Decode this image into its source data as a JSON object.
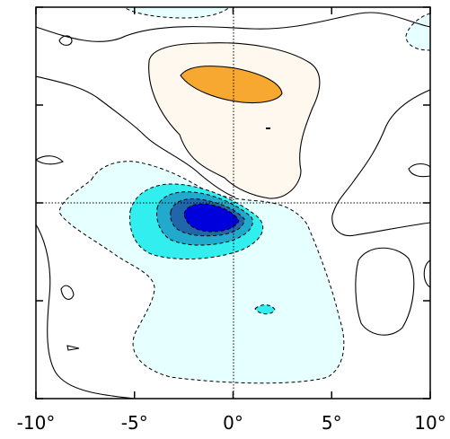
{
  "chart_data": {
    "type": "contour",
    "title": "",
    "xlabel": "",
    "ylabel": "",
    "xlim": [
      -10,
      10
    ],
    "ylim": [
      -10,
      10
    ],
    "x_ticks": [
      -10,
      -5,
      0,
      5,
      10
    ],
    "x_tick_labels": [
      "-10°",
      "-5°",
      "0°",
      "5°",
      "10°"
    ],
    "y_ticks": [
      -10,
      -5,
      0,
      5,
      10
    ],
    "y_tick_labels": [],
    "reference_lines": {
      "x": 0,
      "y": 0,
      "style": "dotted"
    },
    "grid": false,
    "legend": "none",
    "contour_line_style": {
      "positive": "solid",
      "negative": "dashed"
    },
    "colors": {
      "positive_1": "#fff8ee",
      "positive_2": "#f7a830",
      "negative_1": "#e6ffff",
      "negative_2": "#33eeee",
      "negative_3": "#22aacc",
      "negative_4": "#2266aa",
      "negative_5": "#0000dd"
    },
    "features": [
      {
        "name": "positive-maximum",
        "sign": "positive",
        "center": [
          0,
          6.7
        ],
        "levels_shaded": 2
      },
      {
        "name": "negative-minimum",
        "sign": "negative",
        "center": [
          -1.5,
          -0.9
        ],
        "levels_shaded": 5
      },
      {
        "name": "negative-small-cell",
        "sign": "negative",
        "center": [
          1.6,
          -5.5
        ],
        "levels_shaded": 2
      }
    ]
  }
}
